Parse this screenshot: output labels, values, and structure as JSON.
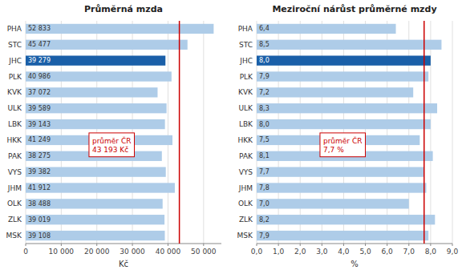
{
  "chart_data": [
    {
      "type": "bar",
      "orientation": "horizontal",
      "title": "Průměrná mzda",
      "x_label": "Kč",
      "categories": [
        "PHA",
        "STC",
        "JHC",
        "PLK",
        "KVK",
        "ULK",
        "LBK",
        "HKK",
        "PAK",
        "VYS",
        "JHM",
        "OLK",
        "ZLK",
        "MSK"
      ],
      "values": [
        52833,
        45477,
        39279,
        40986,
        37072,
        39589,
        39143,
        41249,
        38275,
        39382,
        41912,
        38488,
        39019,
        39108
      ],
      "value_labels": [
        "52 833",
        "45 477",
        "39 279",
        "40 986",
        "37 072",
        "39 589",
        "39 143",
        "41 249",
        "38 275",
        "39 382",
        "41 912",
        "38 488",
        "39 019",
        "39 108"
      ],
      "colors": [
        "#aecce8",
        "#aecce8",
        "#1a5fa8",
        "#aecce8",
        "#aecce8",
        "#aecce8",
        "#aecce8",
        "#aecce8",
        "#aecce8",
        "#aecce8",
        "#aecce8",
        "#aecce8",
        "#aecce8",
        "#aecce8"
      ],
      "data_labels": true,
      "grid": true,
      "xlim": [
        0,
        55000
      ],
      "xticks": [
        0,
        {
          "value": 10000,
          "label": "10 000"
        },
        {
          "value": 20000,
          "label": "20 000"
        },
        {
          "value": 30000,
          "label": "30 000"
        },
        {
          "value": 40000,
          "label": "40 000"
        },
        {
          "value": 50000,
          "label": "50 000"
        }
      ],
      "annotations": [
        {
          "text": "průměr ČR\n43 193 Kč",
          "value": 43193,
          "color": "#cc0000"
        }
      ]
    },
    {
      "type": "bar",
      "orientation": "horizontal",
      "title": "Meziroční nárůst průměrné mzdy",
      "x_label": "%",
      "categories": [
        "PHA",
        "STC",
        "JHC",
        "PLK",
        "KVK",
        "ULK",
        "LBK",
        "HKK",
        "PAK",
        "VYS",
        "JHM",
        "OLK",
        "ZLK",
        "MSK"
      ],
      "values": [
        6.4,
        8.5,
        8.0,
        7.9,
        7.2,
        8.3,
        8.0,
        7.5,
        8.1,
        7.7,
        7.8,
        7.0,
        8.2,
        7.9
      ],
      "value_labels": [
        "6,4",
        "8,5",
        "8,0",
        "7,9",
        "7,2",
        "8,3",
        "8,0",
        "7,5",
        "8,1",
        "7,7",
        "7,8",
        "7,0",
        "8,2",
        "7,9"
      ],
      "colors": [
        "#aecce8",
        "#aecce8",
        "#1a5fa8",
        "#aecce8",
        "#aecce8",
        "#aecce8",
        "#aecce8",
        "#aecce8",
        "#aecce8",
        "#aecce8",
        "#aecce8",
        "#aecce8",
        "#aecce8",
        "#aecce8"
      ],
      "data_labels": true,
      "grid": true,
      "xlim": [
        0.0,
        9.0
      ],
      "xticks": [
        {
          "value": 0.0,
          "label": "0,0"
        },
        {
          "value": 1.0,
          "label": "1,0"
        },
        {
          "value": 2.0,
          "label": "2,0"
        },
        {
          "value": 3.0,
          "label": "3,0"
        },
        {
          "value": 4.0,
          "label": "4,0"
        },
        {
          "value": 5.0,
          "label": "5,0"
        },
        {
          "value": 6.0,
          "label": "6,0"
        },
        {
          "value": 7.0,
          "label": "7,0"
        },
        {
          "value": 8.0,
          "label": "8,0"
        },
        {
          "value": 9.0,
          "label": "9,0"
        }
      ],
      "annotations": [
        {
          "text": "průměr ČR\n7,7 %",
          "value": 7.7,
          "color": "#cc0000"
        }
      ]
    }
  ]
}
